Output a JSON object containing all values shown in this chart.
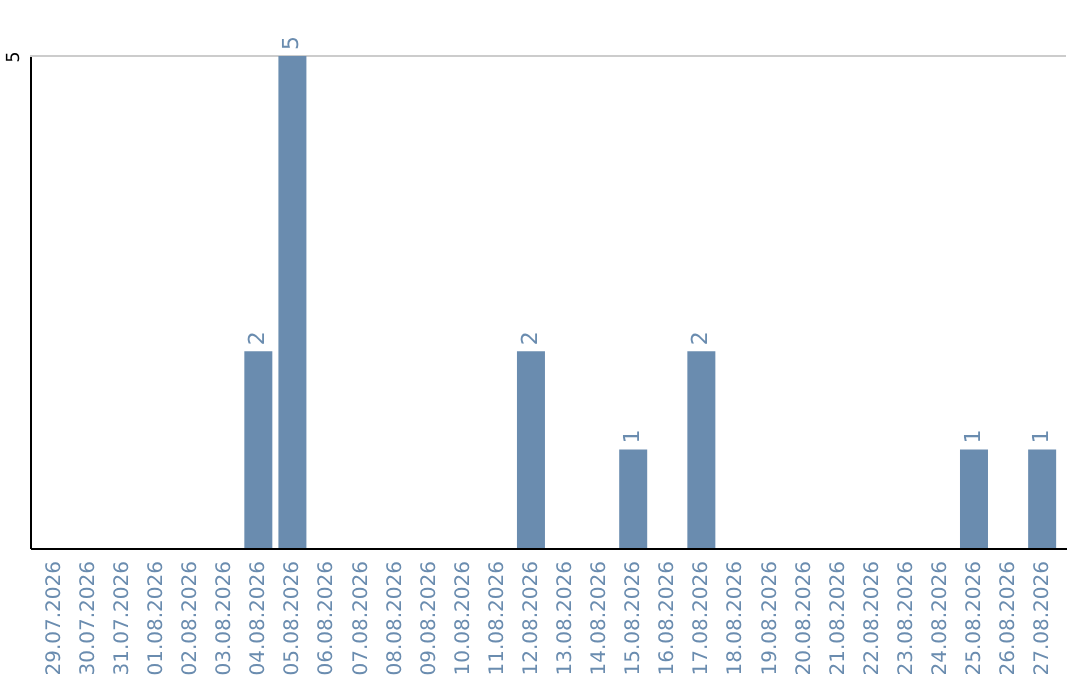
{
  "chart_data": {
    "type": "bar",
    "categories": [
      "29.07.2026",
      "30.07.2026",
      "31.07.2026",
      "01.08.2026",
      "02.08.2026",
      "03.08.2026",
      "04.08.2026",
      "05.08.2026",
      "06.08.2026",
      "07.08.2026",
      "08.08.2026",
      "09.08.2026",
      "10.08.2026",
      "11.08.2026",
      "12.08.2026",
      "13.08.2026",
      "14.08.2026",
      "15.08.2026",
      "16.08.2026",
      "17.08.2026",
      "18.08.2026",
      "19.08.2026",
      "20.08.2026",
      "21.08.2026",
      "22.08.2026",
      "23.08.2026",
      "24.08.2026",
      "25.08.2026",
      "26.08.2026",
      "27.08.2026"
    ],
    "values": [
      0,
      0,
      0,
      0,
      0,
      0,
      2,
      5,
      0,
      0,
      0,
      0,
      0,
      0,
      2,
      0,
      0,
      1,
      0,
      2,
      0,
      0,
      0,
      0,
      0,
      0,
      0,
      1,
      0,
      1
    ],
    "value_labels": [
      null,
      null,
      null,
      null,
      null,
      null,
      "2",
      "5",
      null,
      null,
      null,
      null,
      null,
      null,
      "2",
      null,
      null,
      "1",
      null,
      "2",
      null,
      null,
      null,
      null,
      null,
      null,
      null,
      "1",
      null,
      "1"
    ],
    "color": "#6a8caf",
    "ylim": [
      0,
      5
    ],
    "yticks": [
      5
    ],
    "ref_lines": [
      {
        "axis": "y",
        "value": 5,
        "color": "#cccccc"
      }
    ]
  }
}
